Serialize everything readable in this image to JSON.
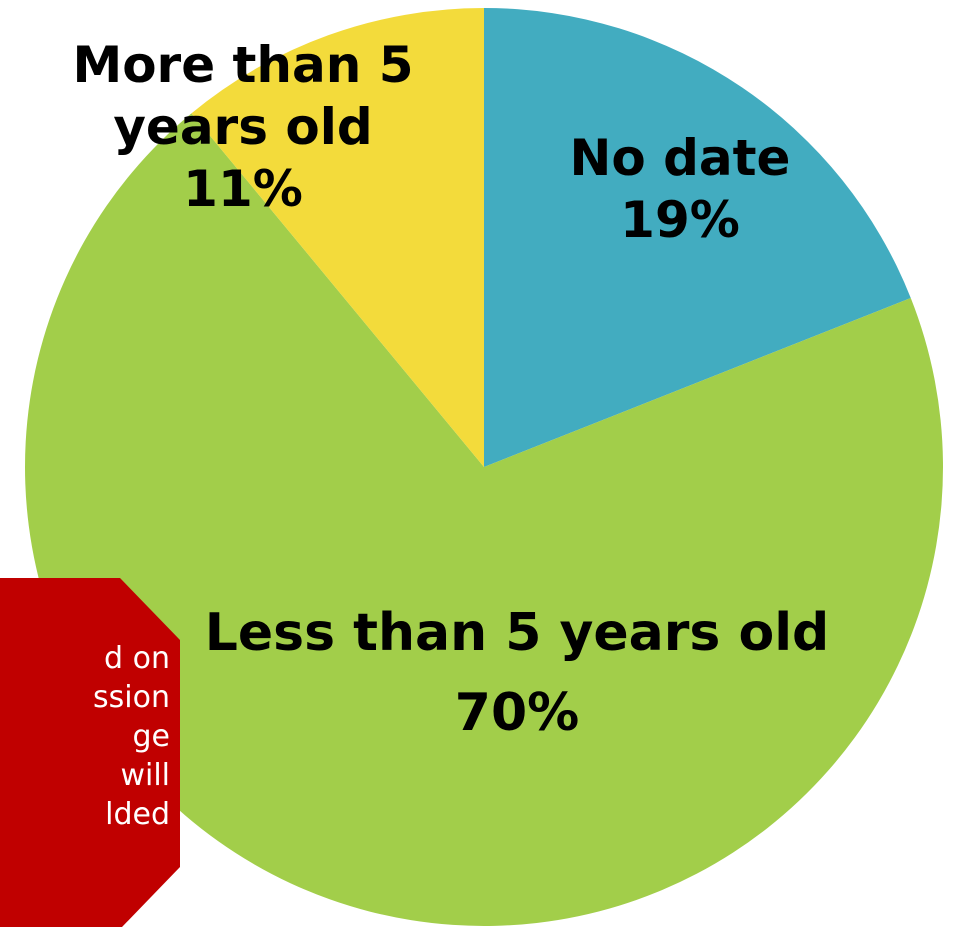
{
  "chart_data": {
    "type": "pie",
    "start_angle_deg": 0,
    "direction": "clockwise",
    "slices": [
      {
        "label_lines": [
          "No date"
        ],
        "percent_label": "19%",
        "value": 19,
        "color": "#42ACC0"
      },
      {
        "label_lines": [
          "Less than 5 years old"
        ],
        "percent_label": "70%",
        "value": 70,
        "color": "#A2CE4A"
      },
      {
        "label_lines": [
          "More than 5",
          "years old"
        ],
        "percent_label": "11%",
        "value": 11,
        "color": "#F3DB3B"
      }
    ]
  },
  "note": {
    "color": "#C00000",
    "lines": [
      "d on",
      "ssion",
      "ge",
      "will",
      "lded"
    ]
  }
}
